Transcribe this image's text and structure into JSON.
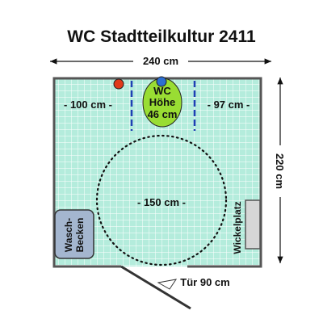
{
  "title": "WC Stadtteilkultur  2411",
  "dimensions": {
    "width": "240 cm",
    "depth": "220 cm",
    "left_clearance": "- 100 cm -",
    "right_clearance": "- 97 cm -",
    "turning_circle": "- 150 cm -"
  },
  "toilet": {
    "line1": "WC",
    "line2": "Höhe",
    "line3": "46 cm"
  },
  "sink": {
    "line1": "Wasch-",
    "line2": "Becken"
  },
  "changing_table": "Wickelplatz",
  "door": "Tür 90 cm",
  "colors": {
    "floor": "#b4ecdc",
    "wall": "#555555",
    "toilet": "#99dd33",
    "grab_bar": "#1f3fb4",
    "red_marker": "#e03a1a",
    "blue_marker": "#2d6fd1"
  }
}
